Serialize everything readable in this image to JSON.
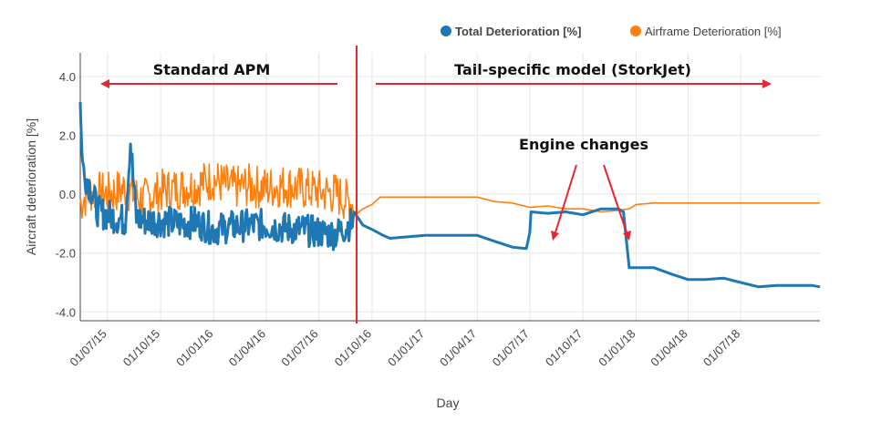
{
  "chart_data": {
    "type": "line",
    "xlabel": "Day",
    "ylabel": "Aircraft deterioration [%]",
    "x_range": [
      "2015-05-15",
      "2018-11-15"
    ],
    "ylim": [
      -4.3,
      4.8
    ],
    "grid": true,
    "legend_position": "top-right",
    "x_ticks": [
      "01/07/15",
      "01/10/15",
      "01/01/16",
      "01/04/16",
      "01/07/16",
      "01/10/16",
      "01/01/17",
      "01/04/17",
      "01/07/17",
      "01/10/17",
      "01/01/18",
      "01/04/18",
      "01/07/18"
    ],
    "x_tick_dates": [
      "2015-07-01",
      "2015-10-01",
      "2016-01-01",
      "2016-04-01",
      "2016-07-01",
      "2016-10-01",
      "2017-01-01",
      "2017-04-01",
      "2017-07-01",
      "2017-10-01",
      "2018-01-01",
      "2018-04-01",
      "2018-07-01"
    ],
    "y_ticks": [
      "4.0",
      "2.0",
      "0.0",
      "-2.0",
      "-4.0"
    ],
    "y_tick_values": [
      4,
      2,
      0,
      -2,
      -4
    ],
    "series": [
      {
        "name": "Total Deterioration [%]",
        "color": "#1f77b4",
        "dates": [
          "2015-05-15",
          "2015-05-20",
          "2015-06-01",
          "2015-06-15",
          "2015-07-01",
          "2015-08-01",
          "2015-08-10",
          "2015-08-20",
          "2015-09-01",
          "2015-10-01",
          "2015-11-01",
          "2015-12-01",
          "2016-01-01",
          "2016-02-01",
          "2016-03-01",
          "2016-04-01",
          "2016-05-01",
          "2016-06-01",
          "2016-07-01",
          "2016-08-01",
          "2016-08-25",
          "2016-09-15",
          "2016-10-01",
          "2016-10-20",
          "2016-11-01",
          "2017-01-01",
          "2017-03-01",
          "2017-04-01",
          "2017-05-01",
          "2017-06-01",
          "2017-06-25",
          "2017-07-01",
          "2017-07-03",
          "2017-08-01",
          "2017-09-01",
          "2017-10-01",
          "2017-11-01",
          "2017-12-01",
          "2017-12-10",
          "2017-12-20",
          "2018-01-01",
          "2018-02-01",
          "2018-03-01",
          "2018-04-01",
          "2018-05-01",
          "2018-06-01",
          "2018-07-01",
          "2018-08-01",
          "2018-09-01",
          "2018-10-01",
          "2018-11-01",
          "2018-11-15"
        ],
        "values": [
          3.1,
          0.8,
          0.3,
          -0.6,
          -0.7,
          -0.9,
          1.8,
          -0.8,
          -0.9,
          -0.9,
          -1.0,
          -0.95,
          -1.2,
          -1.1,
          -1.05,
          -1.05,
          -1.15,
          -1.2,
          -1.3,
          -1.35,
          -1.0,
          -1.05,
          -1.2,
          -1.4,
          -1.5,
          -1.4,
          -1.4,
          -1.4,
          -1.6,
          -1.8,
          -1.85,
          -1.3,
          -0.6,
          -0.65,
          -0.6,
          -0.7,
          -0.5,
          -0.5,
          -0.6,
          -2.5,
          -2.5,
          -2.5,
          -2.7,
          -2.9,
          -2.9,
          -2.85,
          -3.0,
          -3.15,
          -3.1,
          -3.1,
          -3.1,
          -3.15
        ]
      },
      {
        "name": "Airframe Deterioration [%]",
        "color": "#ff7f0e",
        "dates": [
          "2015-05-15",
          "2015-06-01",
          "2015-07-01",
          "2015-08-01",
          "2015-09-01",
          "2015-10-01",
          "2015-11-01",
          "2015-12-01",
          "2016-01-01",
          "2016-02-01",
          "2016-03-01",
          "2016-04-01",
          "2016-05-01",
          "2016-06-01",
          "2016-07-01",
          "2016-08-01",
          "2016-08-25",
          "2016-09-15",
          "2016-10-01",
          "2016-10-15",
          "2017-01-01",
          "2017-04-01",
          "2017-05-01",
          "2017-06-01",
          "2017-07-01",
          "2017-08-01",
          "2017-09-01",
          "2017-10-01",
          "2017-11-01",
          "2017-12-01",
          "2017-12-20",
          "2018-01-01",
          "2018-02-01",
          "2018-03-01",
          "2018-04-01",
          "2018-06-01",
          "2018-09-01",
          "2018-11-15"
        ],
        "values": [
          -0.3,
          0.1,
          0.0,
          0.2,
          -0.2,
          0.1,
          0.2,
          0.3,
          0.5,
          0.2,
          0.3,
          0.2,
          0.3,
          0.2,
          0.1,
          0.0,
          -0.3,
          -0.5,
          -0.35,
          -0.1,
          -0.1,
          -0.1,
          -0.25,
          -0.3,
          -0.45,
          -0.4,
          -0.5,
          -0.5,
          -0.6,
          -0.55,
          -0.5,
          -0.35,
          -0.3,
          -0.3,
          -0.3,
          -0.3,
          -0.3,
          -0.3
        ]
      }
    ],
    "divider_date": "2016-09-01",
    "annotations": {
      "left_region": "Standard APM",
      "right_region": "Tail-specific model (StorkJet)",
      "engine_changes": "Engine changes",
      "engine_change_dates": [
        "2017-07-05",
        "2017-11-15"
      ]
    }
  }
}
